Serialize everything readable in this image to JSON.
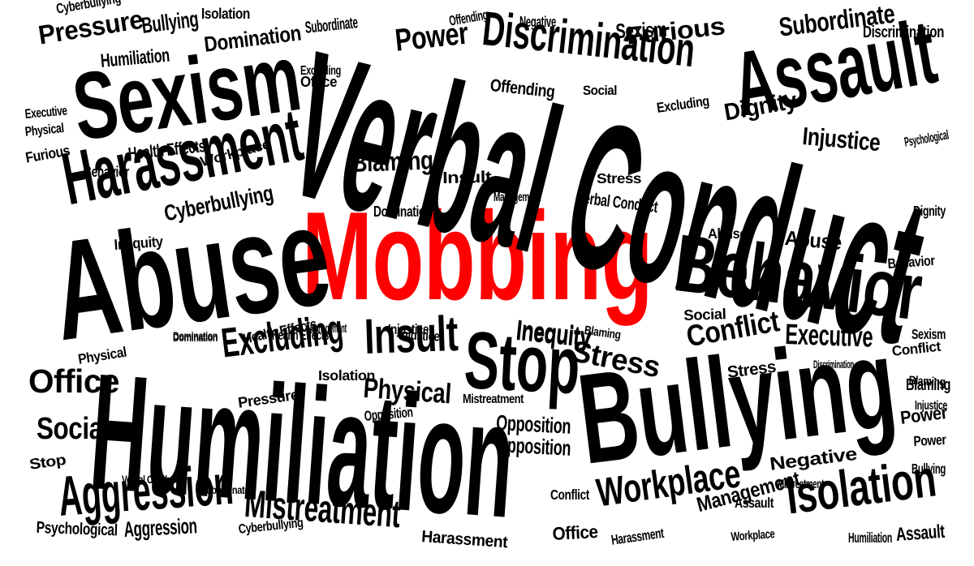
{
  "colors": {
    "text": "#000000",
    "highlight": "#ff0000",
    "background": "#ffffff"
  },
  "words": [
    "Mobbing",
    "Verbal Conduct",
    "Humiliation",
    "Bullying",
    "Abuse",
    "Sexism",
    "Assault",
    "Behavior",
    "Harassment",
    "Discrimination",
    "Aggression",
    "Isolation",
    "Stop",
    "Insult",
    "Excluding",
    "Office",
    "Social",
    "Mistreatment",
    "Workplace",
    "Power",
    "Pressure",
    "Conflict",
    "Subordinate",
    "Stress",
    "Domination",
    "Opposition",
    "Physical",
    "Inequity",
    "Executive",
    "Cyberbullying",
    "Blaming",
    "Negative",
    "Injustice",
    "Dignity",
    "Furious",
    "Health Effects",
    "Psychological",
    "Offending",
    "Management",
    "Abuse",
    "Cyberbullying",
    "Bullying",
    "Isolation",
    "Humiliation",
    "Excluding",
    "Office",
    "Aggression",
    "Domination",
    "Sexism",
    "Insult",
    "Negative",
    "Discrimination",
    "Subordinate",
    "Psychological",
    "Executive",
    "Physical",
    "Furious",
    "Behavior",
    "Workplace",
    "Health Effects",
    "Harassment",
    "Blaming",
    "Management",
    "Inequity",
    "Domination",
    "Stress",
    "Verbal Conduct",
    "Dignity",
    "Injustice",
    "Social",
    "Offending",
    "Excluding",
    "Abuse",
    "Behavior",
    "Social",
    "Sexism",
    "Conflict",
    "Blaming",
    "Injustice",
    "Power",
    "Power",
    "Blaming",
    "Opposition",
    "Stress",
    "Discrimination",
    "Executive",
    "Health Effects",
    "Management",
    "Domination",
    "Physical",
    "Isolation",
    "Pressure",
    "Injustice",
    "Inequity",
    "Opposition",
    "Mistreatment",
    "Verbal Conduct",
    "Subordinate",
    "Stop",
    "Aggression",
    "Psychological",
    "Cyberbullying",
    "Harassment",
    "Conflict",
    "Office",
    "Harassment",
    "Assault",
    "Management",
    "Workplace",
    "Mistreatment",
    "Humiliation",
    "Assault",
    "Aggression",
    "Stop",
    "Bullying",
    "Aggression",
    "Social",
    "Excluding",
    "Office",
    "Insult",
    "Verbal Conduct"
  ]
}
